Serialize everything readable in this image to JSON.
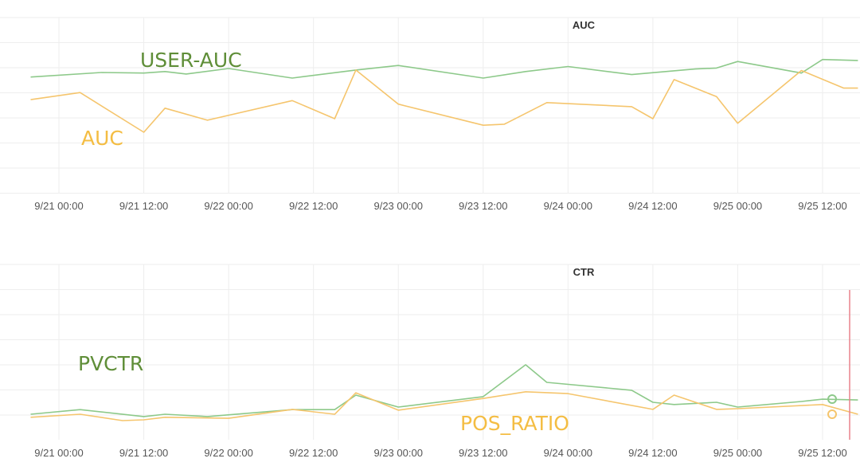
{
  "chart_data": [
    {
      "type": "line",
      "title": "AUC",
      "x_labels": [
        "9/21 00:00",
        "9/21 12:00",
        "9/22 00:00",
        "9/22 12:00",
        "9/23 00:00",
        "9/23 12:00",
        "9/24 00:00",
        "9/24 12:00",
        "9/25 00:00",
        "9/25 12:00"
      ],
      "grid": true,
      "series": [
        {
          "name": "USER-AUC",
          "color": "#8dc98a",
          "points": [
            [
              "9/20 20:00",
              0.83
            ],
            [
              "9/21 06:00",
              0.92
            ],
            [
              "9/21 12:00",
              0.91
            ],
            [
              "9/21 15:00",
              0.94
            ],
            [
              "9/21 18:00",
              0.89
            ],
            [
              "9/22 00:00",
              1.0
            ],
            [
              "9/22 09:00",
              0.81
            ],
            [
              "9/22 18:00",
              0.97
            ],
            [
              "9/23 00:00",
              1.06
            ],
            [
              "9/23 12:00",
              0.81
            ],
            [
              "9/23 18:00",
              0.94
            ],
            [
              "9/24 00:00",
              1.04
            ],
            [
              "9/24 09:00",
              0.88
            ],
            [
              "9/24 18:00",
              0.99
            ],
            [
              "9/24 21:00",
              1.01
            ],
            [
              "9/25 00:00",
              1.14
            ],
            [
              "9/25 09:00",
              0.91
            ],
            [
              "9/25 12:00",
              1.18
            ],
            [
              "9/25 17:00",
              1.16
            ]
          ]
        },
        {
          "name": "AUC",
          "color": "#f5c56d",
          "points": [
            [
              "9/20 20:00",
              0.38
            ],
            [
              "9/21 03:00",
              0.52
            ],
            [
              "9/21 12:00",
              -0.27
            ],
            [
              "9/21 15:00",
              0.21
            ],
            [
              "9/21 21:00",
              -0.03
            ],
            [
              "9/22 09:00",
              0.36
            ],
            [
              "9/22 15:00",
              0.0
            ],
            [
              "9/22 18:00",
              0.97
            ],
            [
              "9/23 00:00",
              0.29
            ],
            [
              "9/23 12:00",
              -0.13
            ],
            [
              "9/23 15:00",
              -0.11
            ],
            [
              "9/23 21:00",
              0.32
            ],
            [
              "9/24 09:00",
              0.24
            ],
            [
              "9/24 12:00",
              0.0
            ],
            [
              "9/24 15:00",
              0.78
            ],
            [
              "9/24 21:00",
              0.44
            ],
            [
              "9/25 00:00",
              -0.09
            ],
            [
              "9/25 09:00",
              0.96
            ],
            [
              "9/25 15:00",
              0.61
            ],
            [
              "9/25 17:00",
              0.61
            ]
          ]
        }
      ]
    },
    {
      "type": "line",
      "title": "CTR",
      "x_labels": [
        "9/21 00:00",
        "9/21 12:00",
        "9/22 00:00",
        "9/22 12:00",
        "9/23 00:00",
        "9/23 12:00",
        "9/24 00:00",
        "9/24 12:00",
        "9/25 00:00",
        "9/25 12:00"
      ],
      "grid": true,
      "series": [
        {
          "name": "PVCTR",
          "color": "#8dc98a",
          "points": [
            [
              "9/20 20:00",
              0.0
            ],
            [
              "9/21 03:00",
              0.18
            ],
            [
              "9/21 12:00",
              -0.09
            ],
            [
              "9/21 15:00",
              0.0
            ],
            [
              "9/21 21:00",
              -0.09
            ],
            [
              "9/22 09:00",
              0.18
            ],
            [
              "9/22 15:00",
              0.18
            ],
            [
              "9/22 18:00",
              0.75
            ],
            [
              "9/23 00:00",
              0.28
            ],
            [
              "9/23 12:00",
              0.69
            ],
            [
              "9/23 18:00",
              1.94
            ],
            [
              "9/23 21:00",
              1.25
            ],
            [
              "9/24 09:00",
              0.94
            ],
            [
              "9/24 12:00",
              0.47
            ],
            [
              "9/24 15:00",
              0.38
            ],
            [
              "9/24 21:00",
              0.47
            ],
            [
              "9/25 00:00",
              0.28
            ],
            [
              "9/25 09:00",
              0.5
            ],
            [
              "9/25 12:00",
              0.59
            ],
            [
              "9/25 17:00",
              0.56
            ]
          ]
        },
        {
          "name": "POS_RATIO",
          "color": "#f5c56d",
          "points": [
            [
              "9/20 20:00",
              -0.12
            ],
            [
              "9/21 03:00",
              0.0
            ],
            [
              "9/21 09:00",
              -0.25
            ],
            [
              "9/21 12:00",
              -0.22
            ],
            [
              "9/21 15:00",
              -0.12
            ],
            [
              "9/22 00:00",
              -0.16
            ],
            [
              "9/22 09:00",
              0.19
            ],
            [
              "9/22 15:00",
              0.0
            ],
            [
              "9/22 18:00",
              0.84
            ],
            [
              "9/23 00:00",
              0.16
            ],
            [
              "9/23 12:00",
              0.62
            ],
            [
              "9/23 18:00",
              0.88
            ],
            [
              "9/24 00:00",
              0.81
            ],
            [
              "9/24 12:00",
              0.19
            ],
            [
              "9/24 15:00",
              0.75
            ],
            [
              "9/24 21:00",
              0.19
            ],
            [
              "9/25 00:00",
              0.22
            ],
            [
              "9/25 12:00",
              0.38
            ],
            [
              "9/25 17:00",
              0.0
            ]
          ]
        }
      ]
    }
  ]
}
